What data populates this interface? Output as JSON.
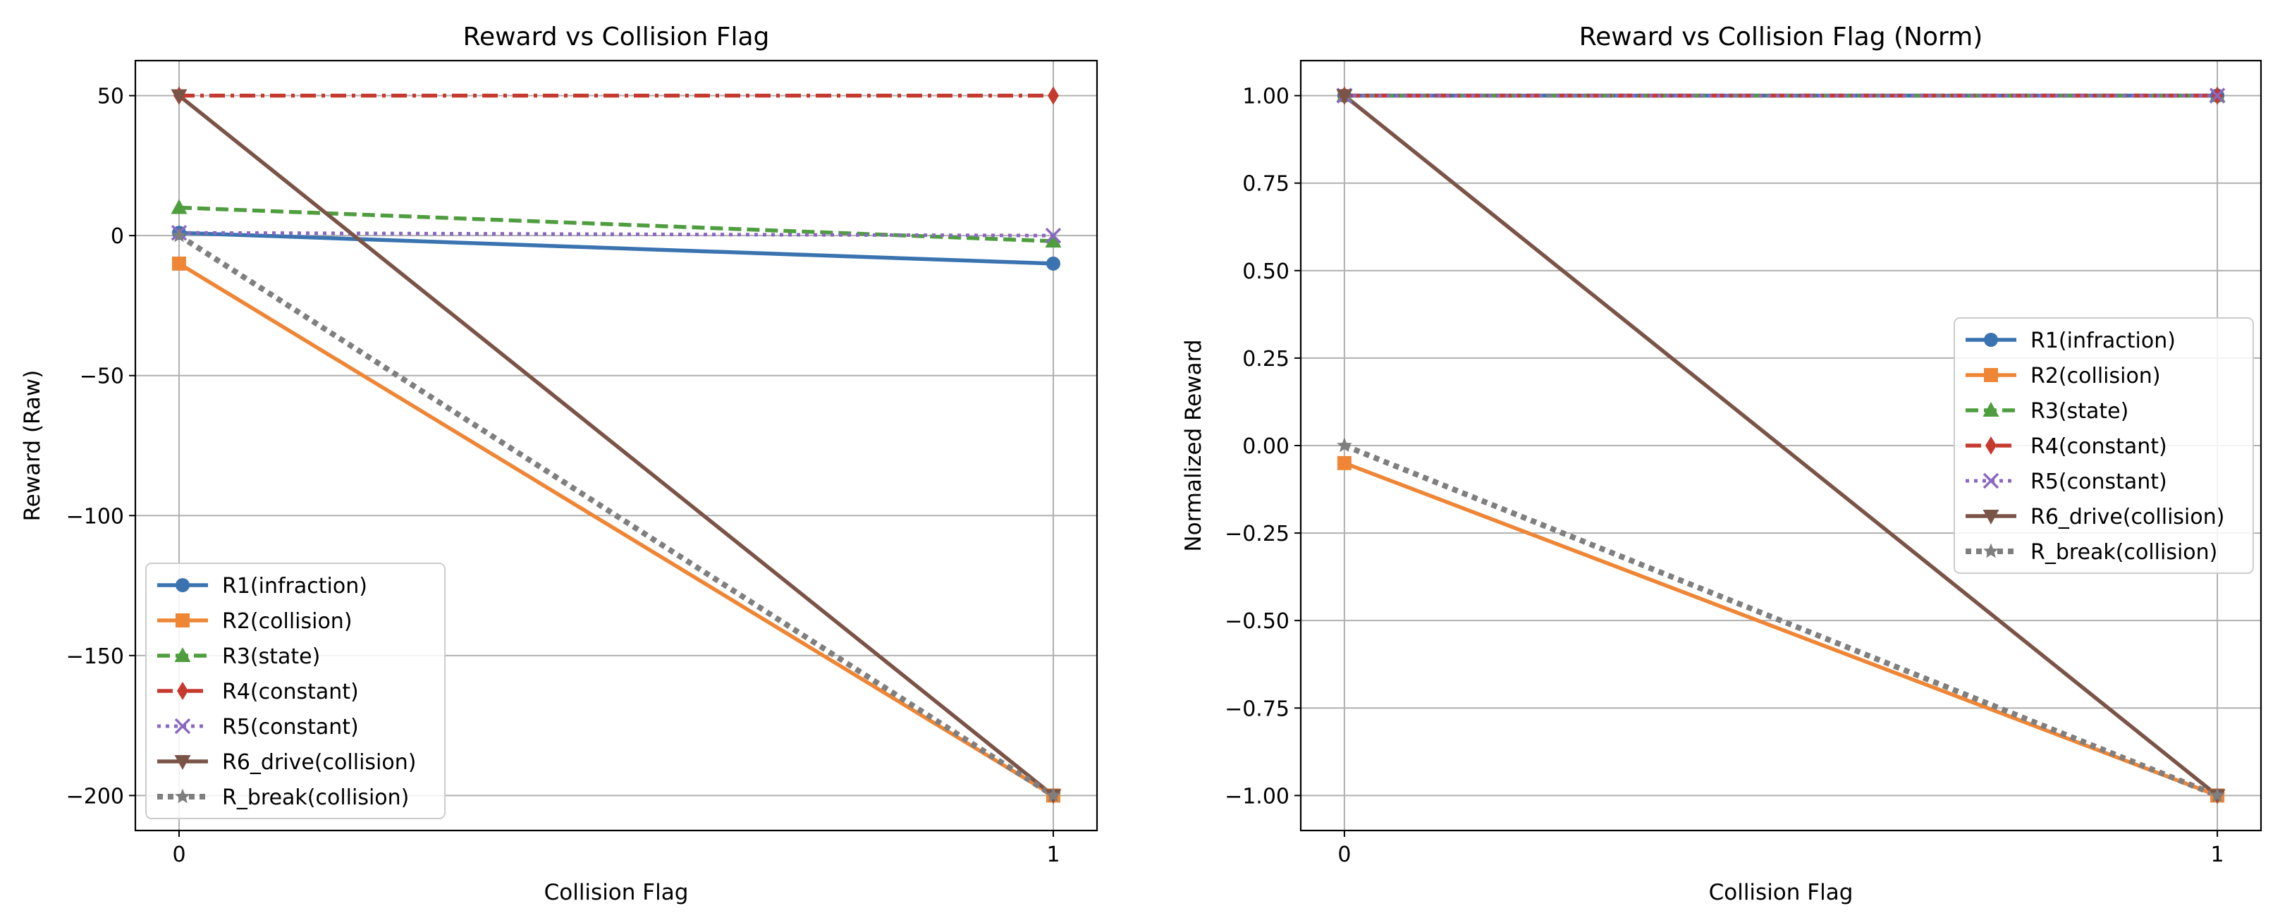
{
  "chart_data": [
    {
      "type": "line",
      "title": "Reward vs Collision Flag",
      "xlabel": "Collision Flag",
      "ylabel": "Reward (Raw)",
      "x": [
        0,
        1
      ],
      "xticks": [
        0,
        1
      ],
      "xtick_labels": [
        "0",
        "1"
      ],
      "xlim": [
        -0.05,
        1.05
      ],
      "ylim": [
        -212.5,
        62.5
      ],
      "yticks": [
        50,
        0,
        -50,
        -100,
        -150,
        -200
      ],
      "ytick_labels": [
        "50",
        "0",
        "−50",
        "−100",
        "−150",
        "−200"
      ],
      "grid": true,
      "legend_position": "lower-left",
      "series": [
        {
          "name": "R1(infraction)",
          "values": [
            1,
            -10
          ],
          "color": "#3a73b0",
          "dash": "solid",
          "marker": "circle"
        },
        {
          "name": "R2(collision)",
          "values": [
            -10,
            -200
          ],
          "color": "#ef8636",
          "dash": "solid",
          "marker": "square"
        },
        {
          "name": "R3(state)",
          "values": [
            10,
            -2
          ],
          "color": "#4e9d3e",
          "dash": "dashed",
          "marker": "triangle-up"
        },
        {
          "name": "R4(constant)",
          "values": [
            50,
            50
          ],
          "color": "#c5392f",
          "dash": "dashdot",
          "marker": "diamond"
        },
        {
          "name": "R5(constant)",
          "values": [
            1,
            0
          ],
          "color": "#8a68c2",
          "dash": "dotted",
          "marker": "x"
        },
        {
          "name": "R6_drive(collision)",
          "values": [
            50,
            -200
          ],
          "color": "#7b5448",
          "dash": "solid",
          "marker": "triangle-down"
        },
        {
          "name": "R_break(collision)",
          "values": [
            0,
            -200
          ],
          "color": "#7f7f7f",
          "dash": "dotted-thick",
          "marker": "star"
        }
      ]
    },
    {
      "type": "line",
      "title": "Reward vs Collision Flag (Norm)",
      "xlabel": "Collision Flag",
      "ylabel": "Normalized Reward",
      "x": [
        0,
        1
      ],
      "xticks": [
        0,
        1
      ],
      "xtick_labels": [
        "0",
        "1"
      ],
      "xlim": [
        -0.05,
        1.05
      ],
      "ylim": [
        -1.1,
        1.1
      ],
      "yticks": [
        1.0,
        0.75,
        0.5,
        0.25,
        0.0,
        -0.25,
        -0.5,
        -0.75,
        -1.0
      ],
      "ytick_labels": [
        "1.00",
        "0.75",
        "0.50",
        "0.25",
        "0.00",
        "−0.25",
        "−0.50",
        "−0.75",
        "−1.00"
      ],
      "grid": true,
      "legend_position": "center-right",
      "series": [
        {
          "name": "R1(infraction)",
          "values": [
            1.0,
            1.0
          ],
          "color": "#3a73b0",
          "dash": "solid",
          "marker": "circle"
        },
        {
          "name": "R2(collision)",
          "values": [
            -0.05,
            -1.0
          ],
          "color": "#ef8636",
          "dash": "solid",
          "marker": "square"
        },
        {
          "name": "R3(state)",
          "values": [
            1.0,
            1.0
          ],
          "color": "#4e9d3e",
          "dash": "dashed",
          "marker": "triangle-up"
        },
        {
          "name": "R4(constant)",
          "values": [
            1.0,
            1.0
          ],
          "color": "#c5392f",
          "dash": "dashdot",
          "marker": "diamond"
        },
        {
          "name": "R5(constant)",
          "values": [
            1.0,
            1.0
          ],
          "color": "#8a68c2",
          "dash": "dotted",
          "marker": "x"
        },
        {
          "name": "R6_drive(collision)",
          "values": [
            1.0,
            -1.0
          ],
          "color": "#7b5448",
          "dash": "solid",
          "marker": "triangle-down"
        },
        {
          "name": "R_break(collision)",
          "values": [
            0.0,
            -1.0
          ],
          "color": "#7f7f7f",
          "dash": "dotted-thick",
          "marker": "star"
        }
      ]
    }
  ]
}
